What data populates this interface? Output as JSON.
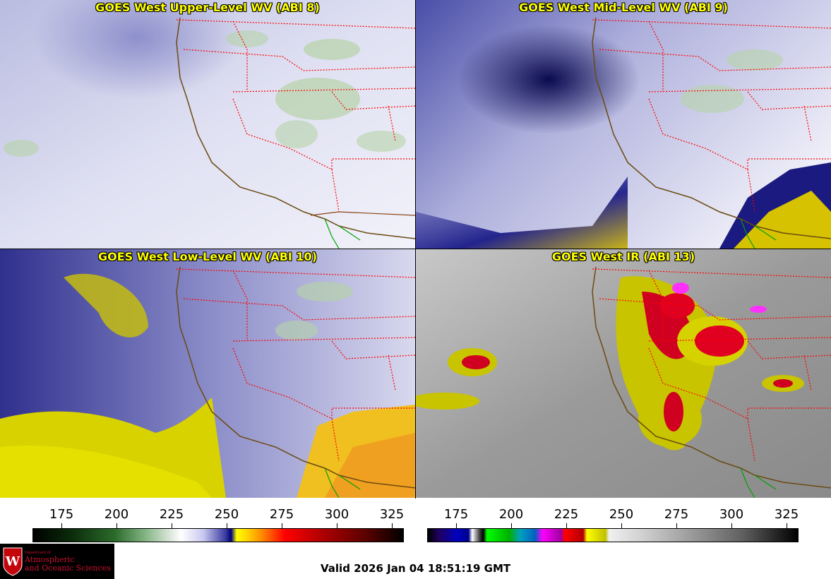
{
  "panels": [
    {
      "title": "GOES West Upper-Level WV (ABI 8)"
    },
    {
      "title": "GOES West Mid-Level WV (ABI 9)"
    },
    {
      "title": "GOES West Low-Level WV (ABI 10)"
    },
    {
      "title": "GOES West IR (ABI 13)"
    }
  ],
  "colorbar_wv": {
    "ticks": [
      "175",
      "200",
      "225",
      "250",
      "275",
      "300",
      "325"
    ]
  },
  "colorbar_ir": {
    "ticks": [
      "175",
      "200",
      "225",
      "250",
      "275",
      "300",
      "325"
    ]
  },
  "logo": {
    "line1": "Department of",
    "line2": "Atmospheric",
    "line3": "and Oceanic Sciences",
    "seal_letter": "W"
  },
  "valid_time": "Valid 2026 Jan 04 18:51:19 GMT",
  "colors": {
    "title": "#ffff00",
    "state_borders": "#ff0000",
    "coast": "#6b4a12",
    "mexico_border": "#00a000"
  }
}
